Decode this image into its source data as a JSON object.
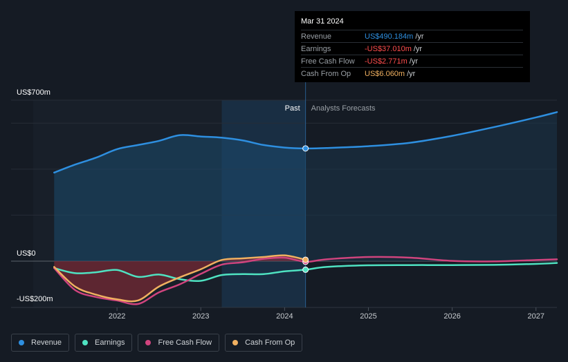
{
  "chart_data": {
    "type": "line",
    "y_unit": "US$m",
    "ylim": [
      -200,
      700
    ],
    "y_tick_labels": [
      {
        "value": 700,
        "label": "US$700m"
      },
      {
        "value": 0,
        "label": "US$0"
      },
      {
        "value": -200,
        "label": "-US$200m"
      }
    ],
    "x_tick_labels": [
      {
        "x": 2022,
        "label": "2022"
      },
      {
        "x": 2023,
        "label": "2023"
      },
      {
        "x": 2024,
        "label": "2024"
      },
      {
        "x": 2025,
        "label": "2025"
      },
      {
        "x": 2026,
        "label": "2026"
      },
      {
        "x": 2027,
        "label": "2027"
      }
    ],
    "xlim": [
      2021.0,
      2027.25
    ],
    "past_label": "Past",
    "forecast_label": "Analysts Forecasts",
    "highlight_start": 2023.25,
    "divider_x": 2024.25,
    "series": [
      {
        "name": "Revenue",
        "color": "#2e8fe0",
        "points": [
          [
            2021.25,
            385
          ],
          [
            2021.5,
            420
          ],
          [
            2021.75,
            450
          ],
          [
            2022.0,
            487
          ],
          [
            2022.25,
            505
          ],
          [
            2022.5,
            523
          ],
          [
            2022.75,
            548
          ],
          [
            2023.0,
            542
          ],
          [
            2023.25,
            537
          ],
          [
            2023.5,
            525
          ],
          [
            2023.75,
            505
          ],
          [
            2024.0,
            494
          ],
          [
            2024.25,
            490.184
          ],
          [
            2024.5,
            492
          ],
          [
            2025.0,
            500
          ],
          [
            2025.5,
            515
          ],
          [
            2026.0,
            545
          ],
          [
            2026.5,
            583
          ],
          [
            2027.0,
            625
          ],
          [
            2027.25,
            648
          ]
        ]
      },
      {
        "name": "Earnings",
        "color": "#4fe3c2",
        "points": [
          [
            2021.25,
            -30
          ],
          [
            2021.5,
            -52
          ],
          [
            2021.75,
            -48
          ],
          [
            2022.0,
            -38
          ],
          [
            2022.25,
            -68
          ],
          [
            2022.5,
            -58
          ],
          [
            2022.75,
            -78
          ],
          [
            2023.0,
            -85
          ],
          [
            2023.25,
            -60
          ],
          [
            2023.5,
            -56
          ],
          [
            2023.75,
            -56
          ],
          [
            2024.0,
            -44
          ],
          [
            2024.25,
            -37.01
          ],
          [
            2024.5,
            -25
          ],
          [
            2025.0,
            -18
          ],
          [
            2025.5,
            -17
          ],
          [
            2026.0,
            -17
          ],
          [
            2026.5,
            -16
          ],
          [
            2027.0,
            -12
          ],
          [
            2027.25,
            -8
          ]
        ]
      },
      {
        "name": "Free Cash Flow",
        "color": "#d0447e",
        "points": [
          [
            2021.25,
            -30
          ],
          [
            2021.5,
            -125
          ],
          [
            2021.75,
            -155
          ],
          [
            2022.0,
            -170
          ],
          [
            2022.25,
            -185
          ],
          [
            2022.5,
            -135
          ],
          [
            2022.75,
            -100
          ],
          [
            2023.0,
            -55
          ],
          [
            2023.25,
            -15
          ],
          [
            2023.5,
            -5
          ],
          [
            2023.75,
            10
          ],
          [
            2024.0,
            15
          ],
          [
            2024.25,
            -2.771
          ],
          [
            2024.5,
            8
          ],
          [
            2025.0,
            18
          ],
          [
            2025.5,
            15
          ],
          [
            2026.0,
            1
          ],
          [
            2026.5,
            -1
          ],
          [
            2027.0,
            5
          ],
          [
            2027.25,
            8
          ]
        ]
      },
      {
        "name": "Cash From Op",
        "color": "#f0b060",
        "points": [
          [
            2021.25,
            -25
          ],
          [
            2021.5,
            -110
          ],
          [
            2021.75,
            -145
          ],
          [
            2022.0,
            -165
          ],
          [
            2022.25,
            -170
          ],
          [
            2022.5,
            -110
          ],
          [
            2022.75,
            -70
          ],
          [
            2023.0,
            -35
          ],
          [
            2023.25,
            5
          ],
          [
            2023.5,
            12
          ],
          [
            2023.75,
            18
          ],
          [
            2024.0,
            25
          ],
          [
            2024.25,
            6.06
          ]
        ]
      }
    ]
  },
  "tooltip": {
    "date": "Mar 31 2024",
    "rows": [
      {
        "label": "Revenue",
        "value": "US$490.184m",
        "unit": "/yr",
        "color": "#2e8fe0"
      },
      {
        "label": "Earnings",
        "value": "-US$37.010m",
        "unit": "/yr",
        "color": "#ff4d4d"
      },
      {
        "label": "Free Cash Flow",
        "value": "-US$2.771m",
        "unit": "/yr",
        "color": "#ff4d4d"
      },
      {
        "label": "Cash From Op",
        "value": "US$6.060m",
        "unit": "/yr",
        "color": "#f0b060"
      }
    ]
  },
  "legend": [
    {
      "label": "Revenue",
      "color": "#2e8fe0"
    },
    {
      "label": "Earnings",
      "color": "#4fe3c2"
    },
    {
      "label": "Free Cash Flow",
      "color": "#d0447e"
    },
    {
      "label": "Cash From Op",
      "color": "#f0b060"
    }
  ]
}
